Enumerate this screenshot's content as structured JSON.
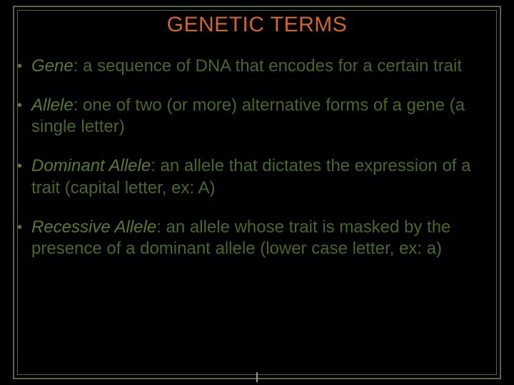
{
  "colors": {
    "background": "#000000",
    "title": "#cc6633",
    "frame": "#556644",
    "bullet_dot": "#5a7a2e",
    "term_text": "#5a7a2e",
    "body_text": "#4a6628",
    "tick": "#8899aa"
  },
  "title": "GENETIC TERMS",
  "bullets": [
    {
      "term": "Gene",
      "definition": ": a sequence of DNA that encodes for a certain trait"
    },
    {
      "term": "Allele",
      "definition": ": one of two (or more) alternative forms of a gene (a single letter)"
    },
    {
      "term": "Dominant Allele",
      "definition": ": an allele that dictates the expression of a trait (capital letter, ex: A)"
    },
    {
      "term": "Recessive Allele",
      "definition": ": an allele whose trait is masked by the presence of a dominant allele (lower case letter, ex: a)"
    }
  ]
}
